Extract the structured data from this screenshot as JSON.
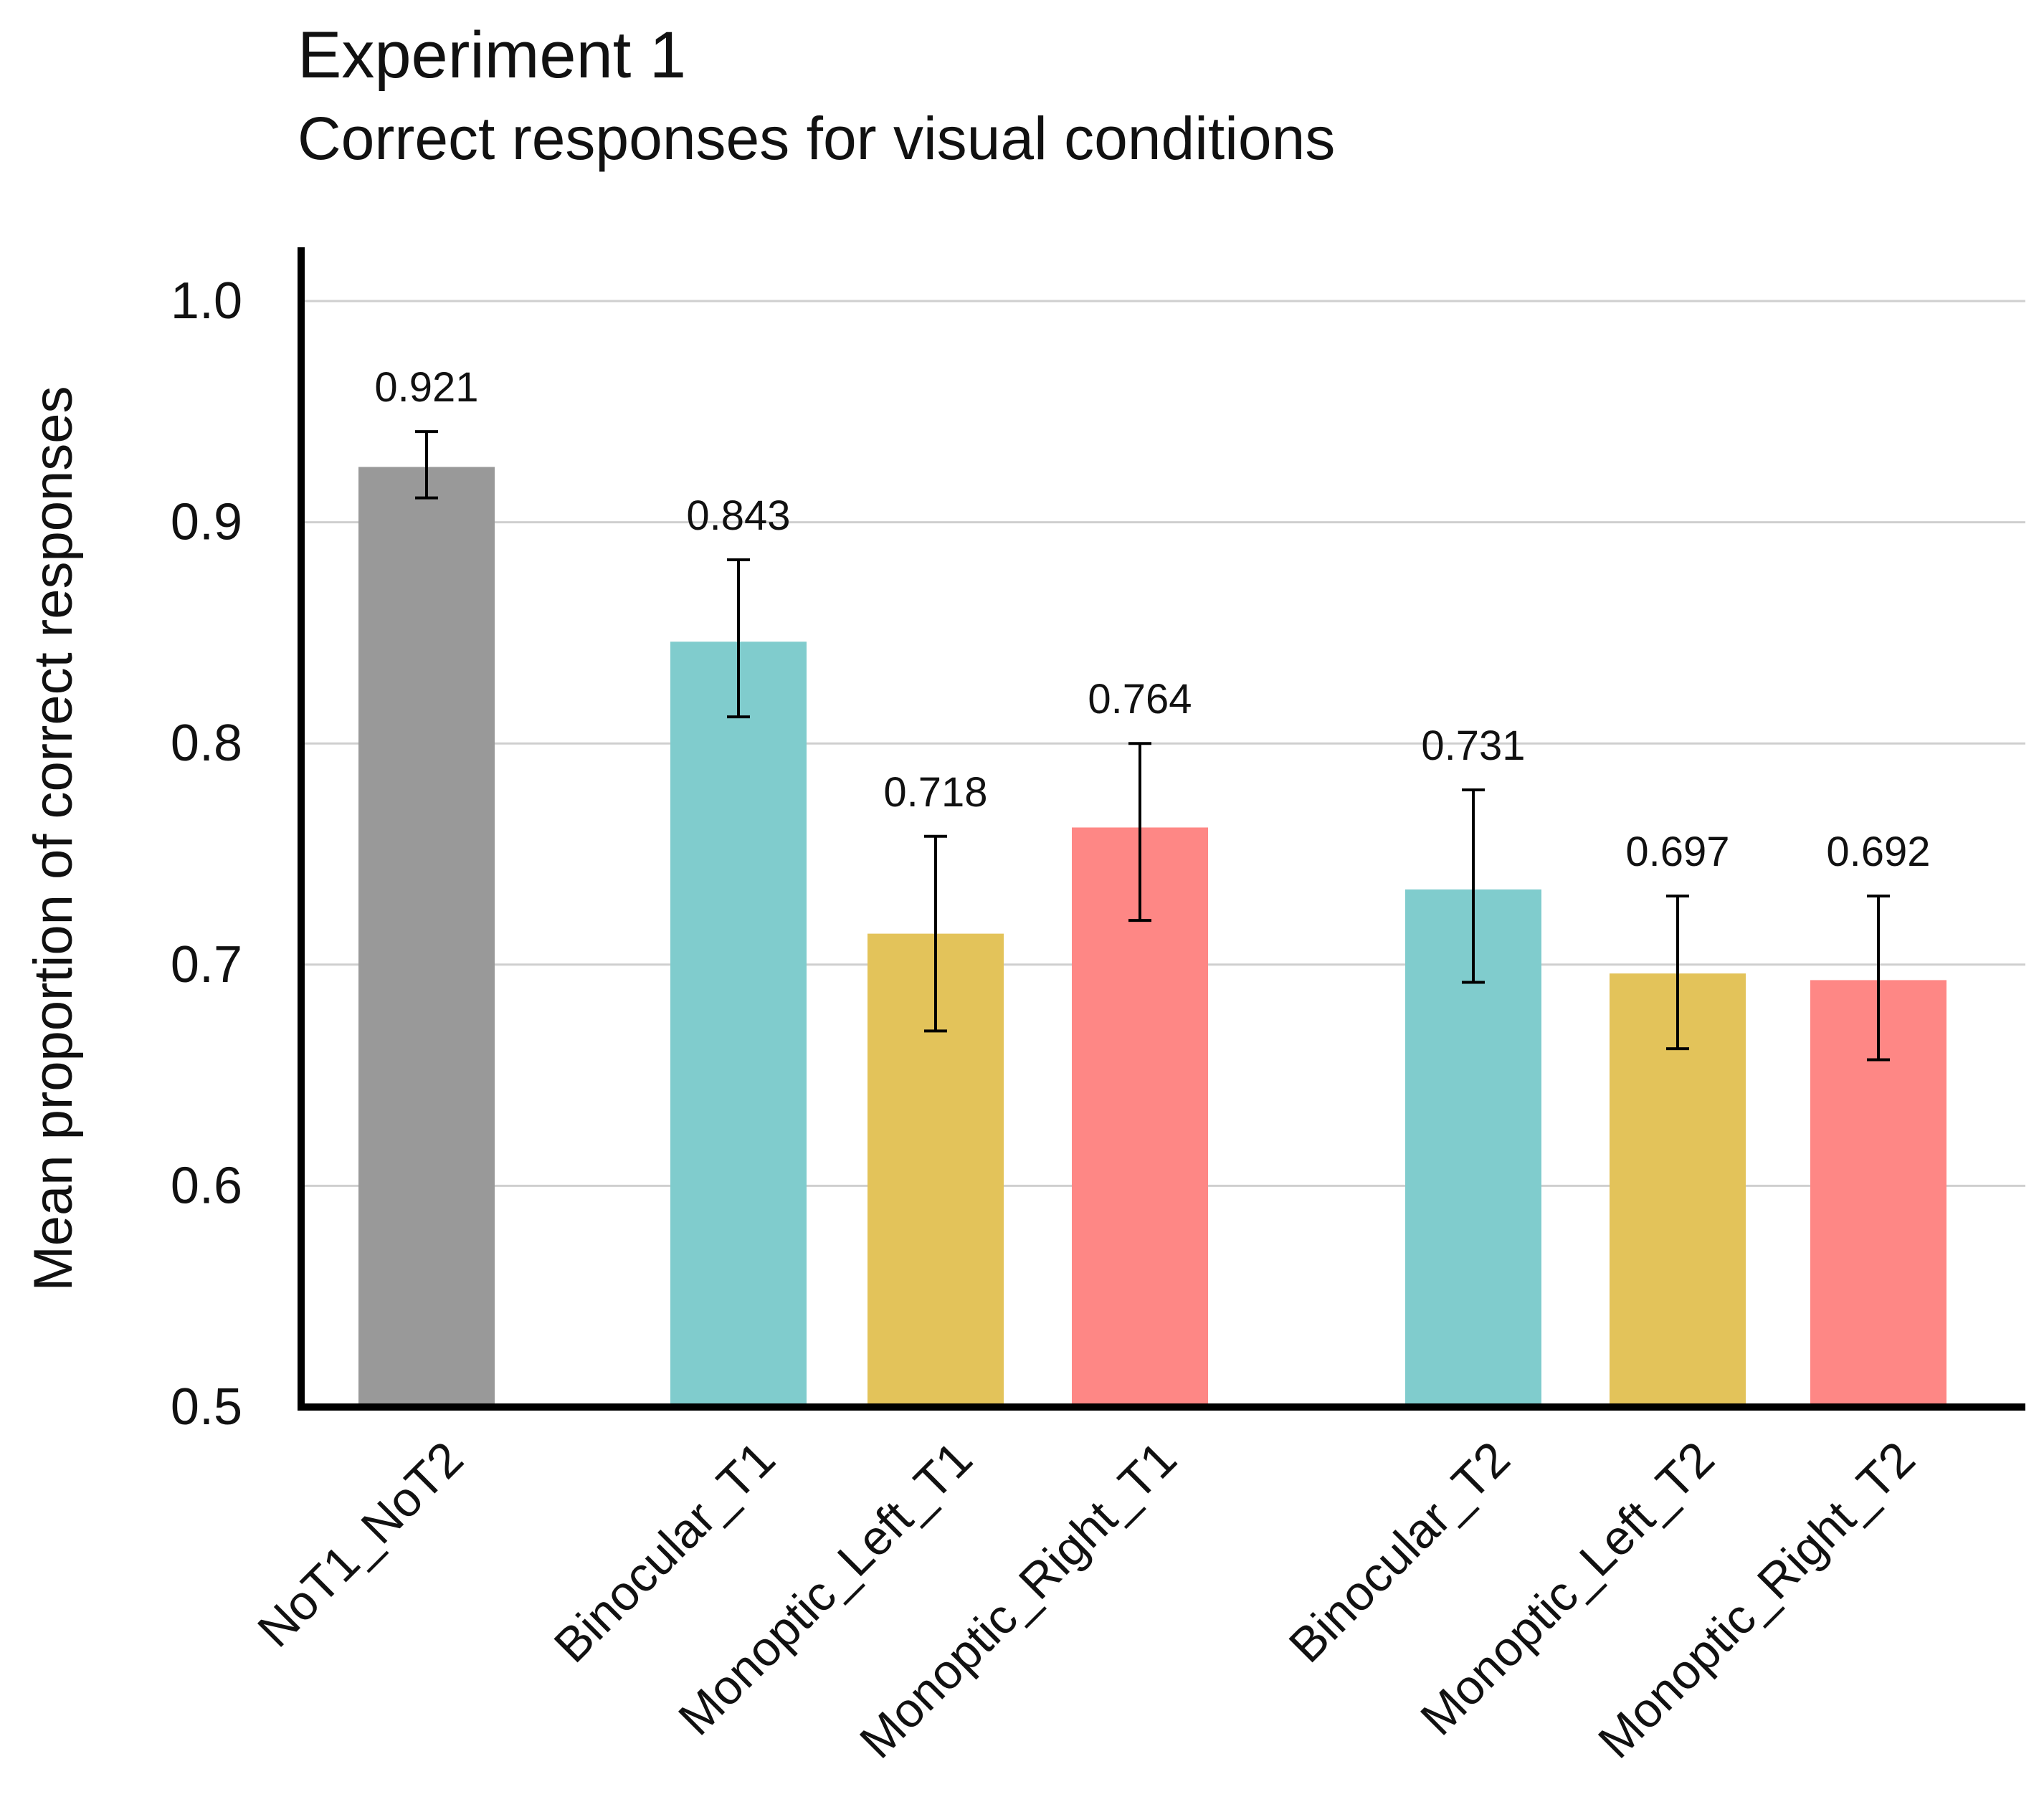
{
  "chart_data": {
    "type": "bar",
    "title": "Experiment 1",
    "subtitle": "Correct responses for visual conditions",
    "xlabel": "",
    "ylabel": "Mean proportion of correct responses",
    "ylim": [
      0.5,
      1.0
    ],
    "yticks": [
      0.5,
      0.6,
      0.7,
      0.8,
      0.9,
      1.0
    ],
    "ytick_labels": [
      "0.5",
      "0.6",
      "0.7",
      "0.8",
      "0.9",
      "1.0"
    ],
    "grid": true,
    "categories": [
      "NoT1_NoT2",
      "Binocular_T1",
      "Monoptic_Left_T1",
      "Monoptic_Right_T1",
      "Binocular_T2",
      "Monoptic_Left_T2",
      "Monoptic_Right_T2"
    ],
    "groups": [
      0,
      1,
      1,
      1,
      2,
      2,
      2
    ],
    "values": [
      0.921,
      0.843,
      0.718,
      0.764,
      0.731,
      0.697,
      0.692
    ],
    "bar_tops": [
      0.925,
      0.846,
      0.714,
      0.762,
      0.734,
      0.696,
      0.693
    ],
    "value_labels": [
      "0.921",
      "0.843",
      "0.718",
      "0.764",
      "0.731",
      "0.697",
      "0.692"
    ],
    "error_low": [
      0.911,
      0.812,
      0.67,
      0.72,
      0.692,
      0.662,
      0.657
    ],
    "error_high": [
      0.941,
      0.883,
      0.758,
      0.8,
      0.779,
      0.731,
      0.731
    ],
    "colors": [
      "#999999",
      "#80cccd",
      "#e3c35a",
      "#fe8785",
      "#80cccd",
      "#e3c35a",
      "#fe8785"
    ]
  }
}
